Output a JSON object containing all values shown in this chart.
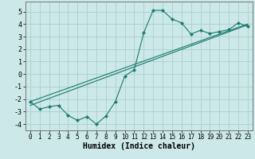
{
  "xlabel": "Humidex (Indice chaleur)",
  "x": [
    0,
    1,
    2,
    3,
    4,
    5,
    6,
    7,
    8,
    9,
    10,
    11,
    12,
    13,
    14,
    15,
    16,
    17,
    18,
    19,
    20,
    21,
    22,
    23
  ],
  "y_main": [
    -2.2,
    -2.8,
    -2.6,
    -2.5,
    -3.3,
    -3.7,
    -3.4,
    -4.0,
    -3.35,
    -2.2,
    -0.15,
    0.35,
    3.3,
    5.1,
    5.1,
    4.4,
    4.1,
    3.2,
    3.5,
    3.25,
    3.4,
    3.55,
    4.1,
    3.8
  ],
  "y_line1": [
    -2.5,
    -2.22,
    -1.94,
    -1.66,
    -1.38,
    -1.1,
    -0.82,
    -0.54,
    -0.26,
    0.02,
    0.3,
    0.58,
    0.86,
    1.14,
    1.42,
    1.7,
    1.98,
    2.26,
    2.54,
    2.82,
    3.1,
    3.38,
    3.66,
    3.94
  ],
  "y_line2": [
    -2.2,
    -1.93,
    -1.66,
    -1.39,
    -1.12,
    -0.85,
    -0.58,
    -0.31,
    -0.04,
    0.23,
    0.5,
    0.77,
    1.04,
    1.31,
    1.58,
    1.85,
    2.12,
    2.39,
    2.66,
    2.93,
    3.2,
    3.47,
    3.74,
    4.01
  ],
  "color_main": "#1a7a6e",
  "color_lines": "#1a7a6e",
  "bg_color": "#cce8e8",
  "grid_color": "#aad0d0",
  "ylim": [
    -4.5,
    5.8
  ],
  "xlim": [
    -0.5,
    23.5
  ],
  "yticks": [
    -4,
    -3,
    -2,
    -1,
    0,
    1,
    2,
    3,
    4,
    5
  ],
  "xticks": [
    0,
    1,
    2,
    3,
    4,
    5,
    6,
    7,
    8,
    9,
    10,
    11,
    12,
    13,
    14,
    15,
    16,
    17,
    18,
    19,
    20,
    21,
    22,
    23
  ],
  "marker": "D",
  "marker_size": 2.2,
  "line_width": 0.8,
  "tick_fontsize": 5.5,
  "xlabel_fontsize": 7.0
}
